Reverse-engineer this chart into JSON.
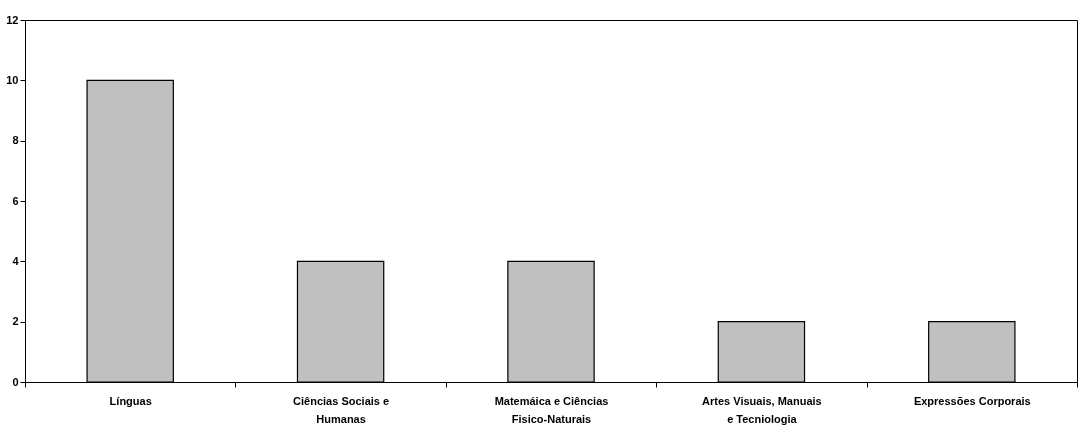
{
  "chart_data": {
    "type": "bar",
    "categories": [
      "Línguas",
      "Ciências Sociais e Humanas",
      "Matemáica e Ciências Fisico-Naturais",
      "Artes Visuais, Manuais e Tecniologia",
      "Expressões Corporais"
    ],
    "values": [
      10,
      4,
      4,
      2,
      2
    ],
    "color": "#c0c0c0",
    "ylim": [
      0,
      12
    ],
    "yticks": [
      0,
      2,
      4,
      6,
      8,
      10,
      12
    ],
    "grid": false
  }
}
